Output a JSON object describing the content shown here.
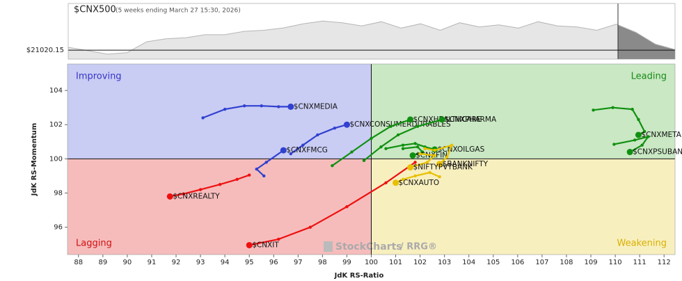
{
  "chart_data": [
    {
      "type": "area",
      "title": "$CNX500",
      "subtitle": "(5 weeks ending March 27 15:30, 2026)",
      "values": [
        21152,
        21000,
        20830,
        20900,
        21410,
        21550,
        21600,
        21740,
        21740,
        21900,
        21950,
        22060,
        22250,
        22380,
        22300,
        22150,
        22350,
        22050,
        22250,
        21950,
        22300,
        22100,
        22200,
        22050,
        22350,
        22150,
        22100,
        21950,
        22230,
        21850,
        21300,
        21050
      ],
      "ylim": [
        20600,
        23200
      ],
      "yticks": [
        {
          "value": 21020.15,
          "label": "$21020.15"
        }
      ],
      "color": "#e6e6e6"
    },
    {
      "type": "rrg",
      "x_label": "JdK RS-Ratio",
      "y_label": "JdK RS-Momentum",
      "xlim": [
        87.55,
        112.45
      ],
      "ylim": [
        94.4,
        105.55
      ],
      "xticks": [
        88,
        89,
        90,
        91,
        92,
        93,
        94,
        95,
        96,
        97,
        98,
        99,
        100,
        101,
        102,
        103,
        104,
        105,
        106,
        107,
        108,
        109,
        110,
        111,
        112
      ],
      "yticks": [
        96,
        98,
        100,
        102,
        104
      ],
      "center": [
        100,
        100
      ],
      "quadrants": [
        {
          "name": "Improving",
          "color": "#3535c8",
          "fill": "#c9ccf3"
        },
        {
          "name": "Leading",
          "color": "#1a8a1a",
          "fill": "#c9e8c3"
        },
        {
          "name": "Lagging",
          "color": "#d01010",
          "fill": "#f6bcbc"
        },
        {
          "name": "Weakening",
          "color": "#d8b000",
          "fill": "#f8efbf"
        }
      ],
      "watermark": [
        "StockCharts",
        "/ RRG®"
      ],
      "series": [
        {
          "name": "$CNXMEDIA",
          "color": "#3040d0",
          "x": [
            93.1,
            94.0,
            94.8,
            95.5,
            96.2,
            96.7
          ],
          "values": [
            102.4,
            102.9,
            103.1,
            103.1,
            103.05,
            103.05
          ]
        },
        {
          "name": "$CNXCONSUMERDURABLES",
          "color": "#3040d0",
          "x": [
            96.7,
            97.2,
            97.8,
            98.5,
            99.0
          ],
          "values": [
            100.3,
            100.8,
            101.4,
            101.8,
            102.0
          ]
        },
        {
          "name": "$CNXFMCG",
          "color": "#3040d0",
          "x": [
            95.6,
            95.3,
            95.7,
            96.4
          ],
          "values": [
            99.0,
            99.4,
            99.8,
            100.5
          ]
        },
        {
          "name": "$CNXREALTY",
          "color": "#ee1010",
          "x": [
            95.0,
            94.5,
            93.8,
            93.0,
            92.3,
            91.75
          ],
          "values": [
            99.05,
            98.8,
            98.5,
            98.2,
            97.95,
            97.8
          ]
        },
        {
          "name": "$CNXIT",
          "color": "#ee1010",
          "x": [
            101.8,
            100.6,
            99.0,
            97.5,
            96.2,
            95.0
          ],
          "values": [
            99.8,
            98.6,
            97.2,
            96.0,
            95.3,
            94.95
          ]
        },
        {
          "name": "$CNXHEALTHCARE",
          "color": "#109010",
          "x": [
            98.4,
            99.2,
            100.0,
            100.8,
            101.6
          ],
          "values": [
            99.6,
            100.4,
            101.2,
            101.9,
            102.3
          ]
        },
        {
          "name": "$CNXPHARMA",
          "color": "#109010",
          "x": [
            99.7,
            100.4,
            101.1,
            101.9,
            102.9
          ],
          "values": [
            99.9,
            100.7,
            101.4,
            101.9,
            102.3
          ]
        },
        {
          "name": "$CNXOILGAS",
          "color": "#109010",
          "x": [
            100.6,
            101.3,
            101.8,
            102.2,
            102.6
          ],
          "values": [
            100.6,
            100.8,
            100.9,
            100.7,
            100.55
          ]
        },
        {
          "name": "$CNXFIN",
          "color": "#109010",
          "x": [
            101.3,
            101.9,
            102.1,
            101.7
          ],
          "values": [
            100.6,
            100.7,
            100.4,
            100.2
          ]
        },
        {
          "name": "$CNXMETAL",
          "color": "#109010",
          "x": [
            109.1,
            109.9,
            110.7,
            110.95,
            111.2,
            110.95
          ],
          "values": [
            102.85,
            103.0,
            102.9,
            102.3,
            101.6,
            101.4
          ]
        },
        {
          "name": "$CNXPSUBANK",
          "color": "#109010",
          "x": [
            109.95,
            110.8,
            111.35,
            111.1,
            110.6
          ],
          "values": [
            100.85,
            101.1,
            101.3,
            100.8,
            100.4
          ]
        },
        {
          "name": "$BANKNIFTY",
          "color": "#e8c000",
          "x": [
            102.2,
            102.6,
            103.3,
            103.1,
            102.8
          ],
          "values": [
            100.6,
            100.5,
            100.8,
            100.1,
            99.7
          ]
        },
        {
          "name": "$NIFTYPVTBANK",
          "color": "#e8c000",
          "x": [
            102.0,
            102.6,
            102.3,
            101.6
          ],
          "values": [
            100.3,
            100.2,
            99.8,
            99.5
          ]
        },
        {
          "name": "$CNXAUTO",
          "color": "#e8c000",
          "x": [
            102.8,
            102.4,
            101.8,
            101.3,
            101.0
          ],
          "values": [
            98.95,
            99.2,
            99.0,
            98.8,
            98.6
          ]
        }
      ]
    }
  ]
}
